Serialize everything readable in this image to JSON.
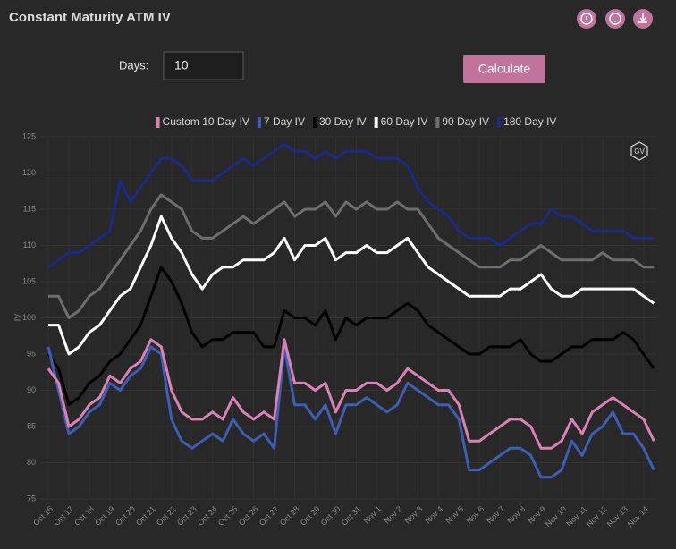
{
  "header": {
    "title": "Constant Maturity ATM IV"
  },
  "form": {
    "days_label": "Days:",
    "days_value": "10",
    "button": "Calculate"
  },
  "watermark": "GV",
  "chart_data": {
    "type": "line",
    "ylabel": "IV",
    "ylim": [
      75,
      125
    ],
    "yticks": [
      75,
      80,
      85,
      90,
      95,
      100,
      105,
      110,
      115,
      120,
      125
    ],
    "grid": true,
    "legend": "top",
    "categories": [
      "Oct 16",
      null,
      "Oct 17",
      null,
      "Oct 18",
      null,
      "Oct 19",
      null,
      "Oct 20",
      null,
      "Oct 21",
      null,
      "Oct 22",
      null,
      "Oct 23",
      null,
      "Oct 24",
      null,
      "Oct 25",
      null,
      "Oct 26",
      null,
      "Oct 27",
      null,
      "Oct 28",
      null,
      "Oct 29",
      null,
      "Oct 30",
      null,
      "Oct 31",
      null,
      "Nov 1",
      null,
      "Nov 2",
      null,
      "Nov 3",
      null,
      "Nov 4",
      null,
      "Nov 5",
      null,
      "Nov 6",
      null,
      "Nov 7",
      null,
      "Nov 8",
      null,
      "Nov 9",
      null,
      "Nov 10",
      null,
      "Nov 11",
      null,
      "Nov 12",
      null,
      "Nov 13",
      null,
      "Nov 14",
      null
    ],
    "series": [
      {
        "name": "Custom 10 Day IV",
        "color": "#d982b3",
        "values": [
          93,
          91,
          85,
          86,
          88,
          89,
          92,
          91,
          93,
          94,
          97,
          96,
          90,
          87,
          86,
          86,
          87,
          86,
          89,
          87,
          86,
          87,
          86,
          97,
          91,
          91,
          90,
          91,
          87,
          90,
          90,
          91,
          91,
          90,
          91,
          93,
          92,
          91,
          90,
          90,
          88,
          83,
          83,
          84,
          85,
          86,
          86,
          85,
          82,
          82,
          83,
          86,
          84,
          87,
          88,
          89,
          88,
          87,
          86,
          83
        ]
      },
      {
        "name": "7 Day IV",
        "color": "#3d5eb5",
        "values": [
          96,
          90,
          84,
          85,
          87,
          88,
          91,
          90,
          92,
          93,
          96,
          95,
          86,
          83,
          82,
          83,
          84,
          83,
          86,
          84,
          83,
          84,
          82,
          96,
          88,
          88,
          86,
          88,
          84,
          88,
          88,
          89,
          88,
          87,
          88,
          91,
          90,
          89,
          88,
          88,
          86,
          79,
          79,
          80,
          81,
          82,
          82,
          81,
          78,
          78,
          79,
          83,
          81,
          84,
          85,
          87,
          84,
          84,
          82,
          79
        ]
      },
      {
        "name": "30 Day IV",
        "color": "#000000",
        "values": [
          95,
          93,
          88,
          89,
          91,
          92,
          94,
          95,
          97,
          99,
          103,
          107,
          105,
          102,
          98,
          96,
          97,
          97,
          98,
          98,
          98,
          96,
          96,
          101,
          100,
          100,
          99,
          101,
          97,
          100,
          99,
          100,
          100,
          100,
          101,
          102,
          101,
          99,
          98,
          97,
          96,
          95,
          95,
          96,
          96,
          96,
          97,
          95,
          94,
          94,
          95,
          96,
          96,
          97,
          97,
          97,
          98,
          97,
          95,
          93
        ]
      },
      {
        "name": "60 Day IV",
        "color": "#ffffff",
        "values": [
          99,
          99,
          95,
          96,
          98,
          99,
          101,
          103,
          104,
          107,
          110,
          114,
          111,
          109,
          106,
          104,
          106,
          107,
          107,
          108,
          108,
          108,
          109,
          111,
          108,
          110,
          110,
          111,
          108,
          109,
          109,
          110,
          109,
          109,
          110,
          111,
          109,
          107,
          106,
          105,
          104,
          103,
          103,
          103,
          103,
          104,
          104,
          105,
          106,
          104,
          103,
          103,
          104,
          104,
          104,
          104,
          104,
          104,
          103,
          102
        ]
      },
      {
        "name": "90 Day IV",
        "color": "#6e6e6e",
        "values": [
          103,
          103,
          100,
          101,
          103,
          104,
          106,
          108,
          110,
          112,
          115,
          117,
          116,
          115,
          112,
          111,
          111,
          112,
          113,
          114,
          113,
          114,
          115,
          116,
          114,
          115,
          115,
          116,
          114,
          116,
          115,
          116,
          115,
          115,
          116,
          115,
          115,
          113,
          111,
          110,
          109,
          108,
          107,
          107,
          107,
          108,
          108,
          109,
          110,
          109,
          108,
          108,
          108,
          108,
          109,
          108,
          108,
          108,
          107,
          107
        ]
      },
      {
        "name": "180 Day IV",
        "color": "#1a2a85",
        "values": [
          107,
          108,
          109,
          109,
          110,
          111,
          112,
          119,
          116,
          118,
          120,
          122,
          122,
          121,
          119,
          119,
          119,
          120,
          121,
          122,
          121,
          122,
          123,
          124,
          123,
          123,
          122,
          123,
          122,
          123,
          123,
          123,
          122,
          122,
          122,
          121,
          118,
          116,
          115,
          114,
          112,
          111,
          111,
          111,
          110,
          111,
          112,
          113,
          113,
          115,
          114,
          114,
          113,
          112,
          112,
          112,
          112,
          111,
          111,
          111
        ]
      }
    ]
  }
}
